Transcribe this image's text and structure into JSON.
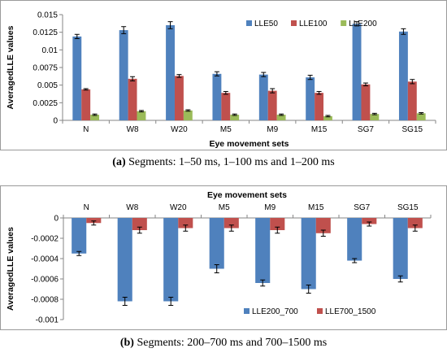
{
  "captions": {
    "a": {
      "label": "(a)",
      "text": "Segments: 1–50 ms, 1–100 ms and 1–200 ms"
    },
    "b": {
      "label": "(b)",
      "text": "Segments: 200–700 ms and 700–1500 ms"
    }
  },
  "colors": {
    "blue": "#4f81bd",
    "red": "#c0504d",
    "green": "#9bbb59"
  },
  "chart_data": [
    {
      "type": "bar",
      "title": "",
      "xlabel": "Eye movement sets",
      "ylabel": "AveragedLLE values",
      "categories": [
        "N",
        "W8",
        "W20",
        "M5",
        "M9",
        "M15",
        "SG7",
        "SG15"
      ],
      "ylim": [
        0,
        0.015
      ],
      "yticks": [
        "0",
        "0.0025",
        "0.005",
        "0.0075",
        "0.01",
        "0.0125",
        "0.015"
      ],
      "ytick_values": [
        0,
        0.0025,
        0.005,
        0.0075,
        0.01,
        0.0125,
        0.015
      ],
      "grid": false,
      "legend": "top-right",
      "series": [
        {
          "name": "LLE50",
          "color": "#4f81bd",
          "values": [
            0.0119,
            0.0128,
            0.0135,
            0.0066,
            0.0065,
            0.0061,
            0.0137,
            0.0126
          ],
          "errors": [
            0.0003,
            0.0005,
            0.0005,
            0.0003,
            0.0003,
            0.0003,
            0.0003,
            0.0004
          ]
        },
        {
          "name": "LLE100",
          "color": "#c0504d",
          "values": [
            0.0044,
            0.0059,
            0.0063,
            0.0039,
            0.0042,
            0.0039,
            0.0051,
            0.0055
          ],
          "errors": [
            0.0001,
            0.0003,
            0.0002,
            0.0002,
            0.0003,
            0.0002,
            0.0002,
            0.0003
          ]
        },
        {
          "name": "LLE200",
          "color": "#9bbb59",
          "values": [
            0.0008,
            0.0013,
            0.0014,
            0.0008,
            0.0008,
            0.0006,
            0.0009,
            0.001
          ],
          "errors": [
            0.0001,
            0.0001,
            0.0001,
            0.0001,
            0.0001,
            0.0001,
            0.0001,
            0.0001
          ]
        }
      ]
    },
    {
      "type": "bar",
      "title": "",
      "xlabel": "Eye movement sets",
      "ylabel": "AveragedLLE values",
      "categories": [
        "N",
        "W8",
        "W20",
        "M5",
        "M9",
        "M15",
        "SG7",
        "SG15"
      ],
      "ylim": [
        -0.001,
        0
      ],
      "yticks": [
        "0",
        "-0.0002",
        "-0.0004",
        "-0.0006",
        "-0.0008",
        "-0.001"
      ],
      "ytick_values": [
        0,
        -0.0002,
        -0.0004,
        -0.0006,
        -0.0008,
        -0.001
      ],
      "grid": false,
      "legend": "bottom-right",
      "series": [
        {
          "name": "LLE200_700",
          "color": "#4f81bd",
          "values": [
            -0.00035,
            -0.00082,
            -0.00082,
            -0.0005,
            -0.00064,
            -0.0007,
            -0.00042,
            -0.0006
          ],
          "errors": [
            2e-05,
            4e-05,
            4e-05,
            4e-05,
            3e-05,
            4e-05,
            2e-05,
            3e-05
          ]
        },
        {
          "name": "LLE700_1500",
          "color": "#c0504d",
          "values": [
            -5e-05,
            -0.00012,
            -0.0001,
            -0.0001,
            -0.00012,
            -0.00015,
            -6e-05,
            -0.0001
          ],
          "errors": [
            2e-05,
            3e-05,
            3e-05,
            3e-05,
            3e-05,
            3e-05,
            2e-05,
            3e-05
          ]
        }
      ]
    }
  ]
}
